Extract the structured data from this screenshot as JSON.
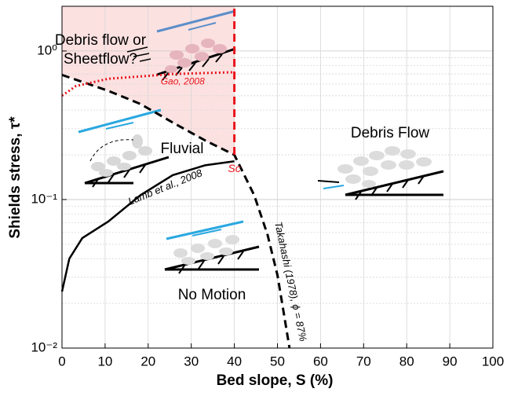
{
  "chart_data": {
    "type": "line",
    "xlabel": "Bed slope, S (%)",
    "ylabel": "Shields stress, τ*",
    "xlim": [
      0,
      100
    ],
    "xticks": [
      0,
      10,
      20,
      30,
      40,
      50,
      60,
      70,
      80,
      90,
      100
    ],
    "ylim": [
      0.01,
      2
    ],
    "yticks": [
      {
        "value": 0.01,
        "label": "10⁻²"
      },
      {
        "value": 0.1,
        "label": "10⁻¹"
      },
      {
        "value": 1,
        "label": "10⁰"
      }
    ],
    "yminorticks": [
      0.02,
      0.03,
      0.04,
      0.05,
      0.06,
      0.07,
      0.08,
      0.09,
      0.2,
      0.3,
      0.4,
      0.5,
      0.6,
      0.7,
      0.8,
      0.9,
      2
    ],
    "yscale": "log",
    "grid": true,
    "shade_color": "#fcdcdc",
    "series": [
      {
        "name": "Lamb et al., 2008",
        "color": "#000000",
        "dash": "solid",
        "x": [
          0,
          1.7,
          4.7,
          10.7,
          18.2,
          25.7,
          33.2,
          40
        ],
        "values": [
          0.024,
          0.04,
          0.055,
          0.071,
          0.107,
          0.146,
          0.17,
          0.181
        ]
      },
      {
        "name": "Takahashi (1978), ϕ = 87%",
        "color": "#000000",
        "dash": "dashed",
        "x": [
          0,
          10.7,
          18.2,
          25.7,
          33.2,
          40,
          44.6,
          47.7,
          50,
          51.5,
          52.8
        ],
        "values": [
          0.69,
          0.54,
          0.44,
          0.33,
          0.25,
          0.2,
          0.107,
          0.058,
          0.031,
          0.017,
          0.01
        ]
      },
      {
        "name": "Gao, 2008",
        "color": "#e8141c",
        "dash": "dotted",
        "x": [
          0,
          3.2,
          10.7,
          25.7,
          40
        ],
        "values": [
          0.5,
          0.58,
          0.65,
          0.7,
          0.72
        ]
      },
      {
        "name": "Sc",
        "color": "#e8141c",
        "dash": "dashed",
        "x": [
          40,
          40
        ],
        "values": [
          0.2,
          2
        ]
      }
    ],
    "annotations": [
      "Debris flow or",
      "Sheetflow?",
      "Fluvial",
      "Debris Flow",
      "No Motion"
    ]
  }
}
